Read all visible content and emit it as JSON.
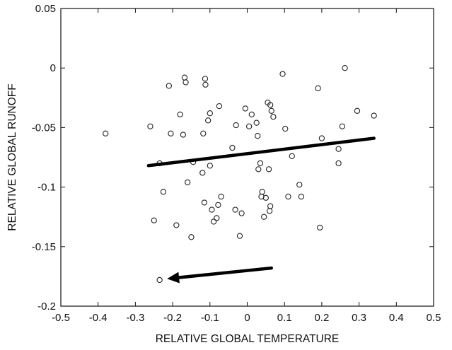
{
  "chart_data": {
    "type": "scatter",
    "title": "",
    "xlabel": "RELATIVE GLOBAL TEMPERATURE",
    "ylabel": "RELATIVE GLOBAL RUNOFF",
    "xlim": [
      -0.5,
      0.5
    ],
    "ylim": [
      -0.2,
      0.05
    ],
    "xticks": [
      -0.5,
      -0.4,
      -0.3,
      -0.2,
      -0.1,
      0,
      0.1,
      0.2,
      0.3,
      0.4,
      0.5
    ],
    "xtick_labels": [
      "-0.5",
      "-0.4",
      "-0.3",
      "-0.2",
      "-0.1",
      "0",
      "0.1",
      "0.2",
      "0.3",
      "0.4",
      "0.5"
    ],
    "yticks": [
      0.05,
      0,
      -0.05,
      -0.1,
      -0.15,
      -0.2
    ],
    "ytick_labels": [
      "0.05",
      "0",
      "-0.05",
      "-0.1",
      "-0.15",
      "-0.2"
    ],
    "grid": false,
    "marker": "open-circle",
    "points": [
      {
        "x": -0.38,
        "y": -0.055
      },
      {
        "x": -0.26,
        "y": -0.049
      },
      {
        "x": -0.25,
        "y": -0.128
      },
      {
        "x": -0.235,
        "y": -0.08
      },
      {
        "x": -0.225,
        "y": -0.104
      },
      {
        "x": -0.21,
        "y": -0.015
      },
      {
        "x": -0.205,
        "y": -0.055
      },
      {
        "x": -0.19,
        "y": -0.132
      },
      {
        "x": -0.18,
        "y": -0.039
      },
      {
        "x": -0.172,
        "y": -0.056
      },
      {
        "x": -0.168,
        "y": -0.008
      },
      {
        "x": -0.165,
        "y": -0.012
      },
      {
        "x": -0.16,
        "y": -0.096
      },
      {
        "x": -0.15,
        "y": -0.142
      },
      {
        "x": -0.145,
        "y": -0.079
      },
      {
        "x": -0.12,
        "y": -0.088
      },
      {
        "x": -0.118,
        "y": -0.055
      },
      {
        "x": -0.115,
        "y": -0.113
      },
      {
        "x": -0.113,
        "y": -0.009
      },
      {
        "x": -0.112,
        "y": -0.014
      },
      {
        "x": -0.105,
        "y": -0.044
      },
      {
        "x": -0.1,
        "y": -0.082
      },
      {
        "x": -0.1,
        "y": -0.038
      },
      {
        "x": -0.095,
        "y": -0.119
      },
      {
        "x": -0.09,
        "y": -0.129
      },
      {
        "x": -0.082,
        "y": -0.126
      },
      {
        "x": -0.078,
        "y": -0.115
      },
      {
        "x": -0.075,
        "y": -0.032
      },
      {
        "x": -0.07,
        "y": -0.108
      },
      {
        "x": -0.04,
        "y": -0.067
      },
      {
        "x": -0.032,
        "y": -0.119
      },
      {
        "x": -0.03,
        "y": -0.048
      },
      {
        "x": -0.02,
        "y": -0.141
      },
      {
        "x": -0.015,
        "y": -0.122
      },
      {
        "x": -0.005,
        "y": -0.034
      },
      {
        "x": 0.005,
        "y": -0.049
      },
      {
        "x": 0.012,
        "y": -0.039
      },
      {
        "x": 0.025,
        "y": -0.046
      },
      {
        "x": 0.028,
        "y": -0.057
      },
      {
        "x": 0.03,
        "y": -0.085
      },
      {
        "x": 0.035,
        "y": -0.08
      },
      {
        "x": 0.038,
        "y": -0.108
      },
      {
        "x": 0.04,
        "y": -0.104
      },
      {
        "x": 0.045,
        "y": -0.125
      },
      {
        "x": 0.05,
        "y": -0.109
      },
      {
        "x": 0.055,
        "y": -0.029
      },
      {
        "x": 0.058,
        "y": -0.085
      },
      {
        "x": 0.06,
        "y": -0.12
      },
      {
        "x": 0.062,
        "y": -0.031
      },
      {
        "x": 0.062,
        "y": -0.116
      },
      {
        "x": 0.065,
        "y": -0.036
      },
      {
        "x": 0.07,
        "y": -0.041
      },
      {
        "x": 0.095,
        "y": -0.005
      },
      {
        "x": 0.102,
        "y": -0.051
      },
      {
        "x": 0.11,
        "y": -0.108
      },
      {
        "x": 0.12,
        "y": -0.074
      },
      {
        "x": 0.14,
        "y": -0.098
      },
      {
        "x": 0.145,
        "y": -0.108
      },
      {
        "x": 0.19,
        "y": -0.017
      },
      {
        "x": 0.195,
        "y": -0.134
      },
      {
        "x": 0.2,
        "y": -0.059
      },
      {
        "x": 0.245,
        "y": -0.068
      },
      {
        "x": 0.245,
        "y": -0.08
      },
      {
        "x": 0.255,
        "y": -0.049
      },
      {
        "x": 0.262,
        "y": 0.0
      },
      {
        "x": 0.295,
        "y": -0.036
      },
      {
        "x": 0.34,
        "y": -0.04
      },
      {
        "x": -0.235,
        "y": -0.178
      }
    ],
    "trend_line": {
      "x": [
        -0.265,
        0.34
      ],
      "y": [
        -0.082,
        -0.059
      ]
    },
    "arrow": {
      "from": {
        "x": 0.065,
        "y": -0.168
      },
      "to": {
        "x": -0.215,
        "y": -0.177
      }
    }
  }
}
